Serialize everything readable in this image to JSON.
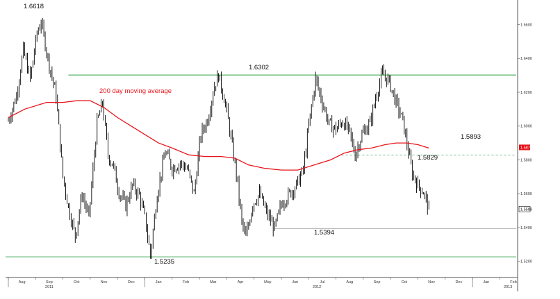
{
  "chart_data": {
    "type": "line",
    "title": "",
    "xlabel": "",
    "ylabel": "",
    "ylim": [
      1.5125,
      1.6725
    ],
    "y_ticks": [
      "1.5200",
      "1.5400",
      "1.5600",
      "1.5800",
      "1.6000",
      "1.6200",
      "1.6400",
      "1.6600"
    ],
    "x_months": [
      "Aug",
      "Sep",
      "Oct",
      "Nov",
      "Dec",
      "Jan",
      "Feb",
      "Mar",
      "Apr",
      "May",
      "Jun",
      "Jul",
      "Aug",
      "Sep",
      "Oct",
      "Nov",
      "Dec",
      "Jan",
      "Feb"
    ],
    "x_years": [
      "2011",
      "2012",
      "2013"
    ],
    "grid": false,
    "colors": {
      "price": "#000000",
      "moving_average": "#e8141b",
      "level_lines": "#2ea043",
      "support_line": "#b5b5b5",
      "dashed_line": "#3fa060",
      "axis": "#555555",
      "last_price_tag": "#000000",
      "ma_tag": "#e8141b"
    },
    "series": [
      {
        "name": "",
        "kind": "price",
        "points": [
          [
            0,
            1.603
          ],
          [
            0.3,
            1.618
          ],
          [
            0.55,
            1.645
          ],
          [
            0.8,
            1.628
          ],
          [
            1.05,
            1.655
          ],
          [
            1.2,
            1.6618
          ],
          [
            1.45,
            1.64
          ],
          [
            1.75,
            1.618
          ],
          [
            2.0,
            1.57
          ],
          [
            2.2,
            1.552
          ],
          [
            2.45,
            1.535
          ],
          [
            2.7,
            1.56
          ],
          [
            2.95,
            1.546
          ],
          [
            3.25,
            1.602
          ],
          [
            3.45,
            1.614
          ],
          [
            3.65,
            1.583
          ],
          [
            3.85,
            1.576
          ],
          [
            4.05,
            1.561
          ],
          [
            4.3,
            1.553
          ],
          [
            4.55,
            1.565
          ],
          [
            4.8,
            1.559
          ],
          [
            5.0,
            1.546
          ],
          [
            5.2,
            1.5235
          ],
          [
            5.45,
            1.56
          ],
          [
            5.75,
            1.585
          ],
          [
            6.0,
            1.575
          ],
          [
            6.3,
            1.578
          ],
          [
            6.55,
            1.575
          ],
          [
            6.8,
            1.56
          ],
          [
            7.05,
            1.595
          ],
          [
            7.3,
            1.604
          ],
          [
            7.55,
            1.624
          ],
          [
            7.7,
            1.6302
          ],
          [
            7.95,
            1.613
          ],
          [
            8.15,
            1.593
          ],
          [
            8.35,
            1.572
          ],
          [
            8.55,
            1.543
          ],
          [
            8.7,
            1.534
          ],
          [
            8.95,
            1.554
          ],
          [
            9.2,
            1.56
          ],
          [
            9.45,
            1.549
          ],
          [
            9.75,
            1.5394
          ],
          [
            10.0,
            1.554
          ],
          [
            10.3,
            1.56
          ],
          [
            10.55,
            1.565
          ],
          [
            10.8,
            1.574
          ],
          [
            11.0,
            1.6
          ],
          [
            11.25,
            1.628
          ],
          [
            11.5,
            1.614
          ],
          [
            11.75,
            1.601
          ],
          [
            12.0,
            1.598
          ],
          [
            12.25,
            1.603
          ],
          [
            12.5,
            1.596
          ],
          [
            12.7,
            1.5829
          ],
          [
            12.95,
            1.595
          ],
          [
            13.25,
            1.602
          ],
          [
            13.5,
            1.62
          ],
          [
            13.7,
            1.631
          ],
          [
            13.95,
            1.626
          ],
          [
            14.2,
            1.614
          ],
          [
            14.45,
            1.603
          ],
          [
            14.6,
            1.5893
          ],
          [
            14.8,
            1.572
          ],
          [
            15.0,
            1.565
          ],
          [
            15.2,
            1.561
          ],
          [
            15.4,
            1.5509
          ]
        ]
      },
      {
        "name": "200 day moving average",
        "kind": "moving_average",
        "points": [
          [
            0,
            1.605
          ],
          [
            0.6,
            1.61
          ],
          [
            1.4,
            1.614
          ],
          [
            2.0,
            1.614
          ],
          [
            2.5,
            1.615
          ],
          [
            3.0,
            1.615
          ],
          [
            3.5,
            1.611
          ],
          [
            4.0,
            1.605
          ],
          [
            4.5,
            1.6
          ],
          [
            5.0,
            1.595
          ],
          [
            5.5,
            1.59
          ],
          [
            6.0,
            1.587
          ],
          [
            6.6,
            1.583
          ],
          [
            7.2,
            1.582
          ],
          [
            7.8,
            1.582
          ],
          [
            8.3,
            1.581
          ],
          [
            8.8,
            1.577
          ],
          [
            9.4,
            1.575
          ],
          [
            10.0,
            1.574
          ],
          [
            10.6,
            1.574
          ],
          [
            11.2,
            1.577
          ],
          [
            11.8,
            1.58
          ],
          [
            12.3,
            1.584
          ],
          [
            12.8,
            1.586
          ],
          [
            13.3,
            1.587
          ],
          [
            13.8,
            1.589
          ],
          [
            14.2,
            1.59
          ],
          [
            14.6,
            1.59
          ],
          [
            15.0,
            1.589
          ],
          [
            15.4,
            1.587
          ]
        ]
      }
    ],
    "annotations": {
      "high_label": "1.6618",
      "ma_label": "200 day moving average",
      "peak_label": "1.6302",
      "low_label": "1.5235",
      "jul_low_label": "1.5394",
      "nov_low_label": "1.5829",
      "jan_high_label": "1.5893",
      "resistance_level": 1.6302,
      "support_level": 1.5235,
      "jul_support_level": 1.5394,
      "dashed_level": 1.5829,
      "last_price_label": "1.5509",
      "ma_last_label": "1.5874",
      "ma_last_value": 1.5874,
      "last_price_value": 1.5509
    }
  }
}
